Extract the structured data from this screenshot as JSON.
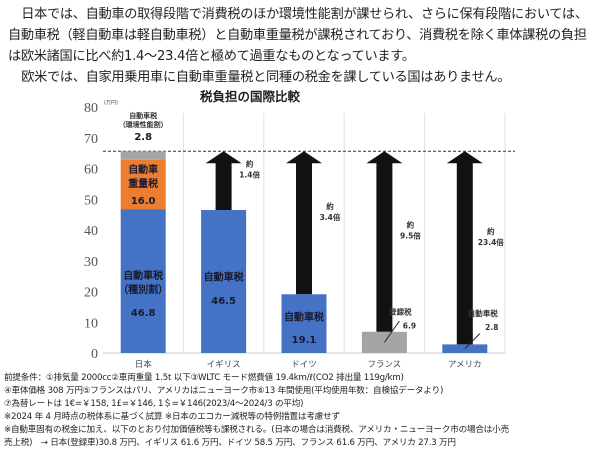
{
  "intro": [
    "日本では、自動車の取得段階で消費税のほか環境性能割が課せられ、さらに保有段階においては、自動車税（軽自動車は軽自動車税）と自動車重量税が課税されており、消費税を除く車体課税の負担は欧米諸国に比べ約1.4～23.4倍と極めて過重なものとなっています。",
    "欧米では、自家用乗用車に自動車重量税と同種の税金を課している国はありません。"
  ],
  "chart_data": {
    "type": "bar",
    "title": "税負担の国際比較",
    "yunit": "(万円)",
    "ylim": [
      0,
      80
    ],
    "yticks": [
      0,
      10,
      20,
      30,
      40,
      50,
      60,
      70,
      80
    ],
    "categories": [
      "日本",
      "イギリス",
      "ドイツ",
      "フランス",
      "アメリカ"
    ],
    "reference_line": 65.6,
    "colors": {
      "blue": "#4472C4",
      "orange": "#ED7D31",
      "gray": "#A5A5A5",
      "arrow": "#111111"
    },
    "bars": [
      {
        "category": "日本",
        "segments": [
          {
            "label": "自動車税\n（種別割）",
            "value": 46.8,
            "color": "blue"
          },
          {
            "label": "自動車\n重量税",
            "value": 16.0,
            "color": "orange"
          },
          {
            "label": "自動車税\n（環境性能割）",
            "value": 2.8,
            "color": "gray"
          }
        ]
      },
      {
        "category": "イギリス",
        "segments": [
          {
            "label": "自動車税",
            "value": 46.5,
            "color": "blue"
          }
        ],
        "ratio": "約\n1.4倍"
      },
      {
        "category": "ドイツ",
        "segments": [
          {
            "label": "自動車税",
            "value": 19.1,
            "color": "blue"
          }
        ],
        "ratio": "約\n3.4倍"
      },
      {
        "category": "フランス",
        "segments": [
          {
            "label": "登録税",
            "value": 6.9,
            "color": "gray"
          }
        ],
        "ratio": "約\n9.5倍"
      },
      {
        "category": "アメリカ",
        "segments": [
          {
            "label": "自動車税",
            "value": 2.8,
            "color": "blue"
          }
        ],
        "ratio": "約\n23.4倍"
      }
    ]
  },
  "notes": [
    "前提条件：①排気量 2000cc②車両重量 1.5t 以下③WLTC モード燃費値 19.4km/ℓ(CO2 排出量 119g/km)",
    "④車体価格 308 万円⑤フランスはパリ、アメリカはニューヨーク市⑥13 年間使用(平均使用年数：自検協データより)",
    "⑦為替レートは 1€=￥158, 1£=￥146, 1＄=￥146(2023/4～2024/3 の平均)",
    "※2024 年 4 月時点の税体系に基づく試算 ※日本のエコカー減税等の特例措置は考慮せず",
    "※自動車固有の税金に加え、以下のとおり付加価値税等も課税される。(日本の場合は消費税、アメリカ・ニューヨーク市の場合は小売",
    "売上税)　→ 日本(登録車)30.8 万円、イギリス 61.6 万円、ドイツ 58.5 万円、フランス 61.6 万円、アメリカ 27.3 万円"
  ]
}
